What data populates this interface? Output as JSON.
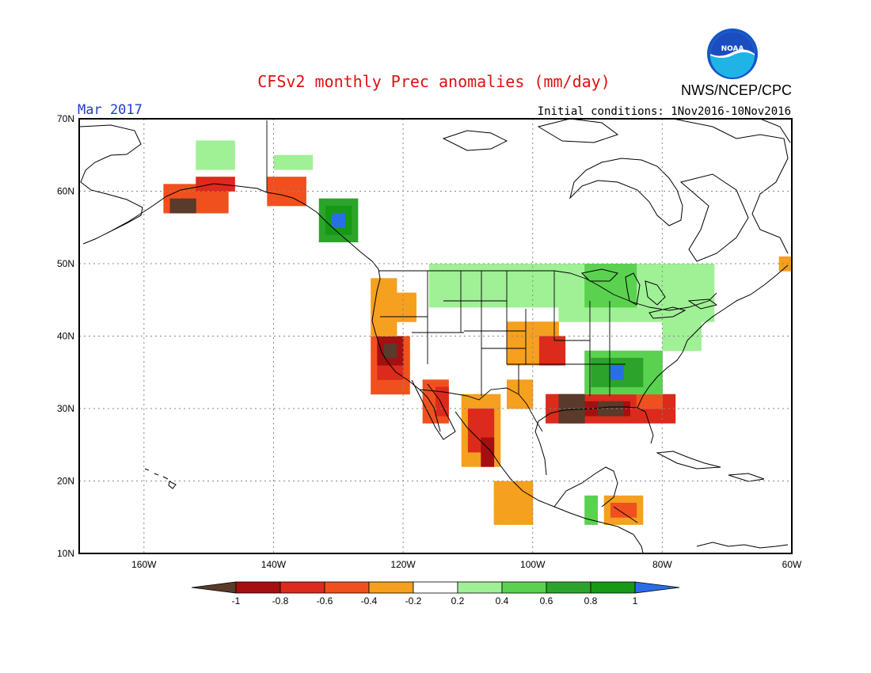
{
  "title": "CFSv2 monthly Prec anomalies (mm/day)",
  "month": "Mar 2017",
  "initial_conditions": "Initial conditions: 1Nov2016-10Nov2016",
  "agency": "NWS/NCEP/CPC",
  "logo_text": "NOAA",
  "map": {
    "lon_range": [
      -170,
      -60
    ],
    "lat_range": [
      10,
      70
    ],
    "lat_ticks": [
      "70N",
      "60N",
      "50N",
      "40N",
      "30N",
      "20N",
      "10N"
    ],
    "lon_ticks": [
      "160W",
      "140W",
      "120W",
      "100W",
      "80W",
      "60W"
    ],
    "grid": "dotted"
  },
  "legend": {
    "ticks": [
      "-1",
      "-0.8",
      "-0.6",
      "-0.4",
      "-0.2",
      "0.2",
      "0.4",
      "0.6",
      "0.8",
      "1"
    ],
    "colors": [
      "#5a3a2a",
      "#a50f0f",
      "#dc2a1c",
      "#f0501e",
      "#f5a01e",
      "#ffffff",
      "#a0f096",
      "#5ad250",
      "#2ca42c",
      "#169a16",
      "#2a6ee6"
    ]
  },
  "colors": {
    "title": "#e01010",
    "month": "#1e3ccc",
    "text": "#000000"
  },
  "anomaly_regions": [
    {
      "name": "alaska-sw",
      "level": -0.6,
      "lon": -154,
      "lat": 58.5
    },
    {
      "name": "alaska-brown",
      "level": -1,
      "lon": -155,
      "lat": 58
    },
    {
      "name": "gulf-alaska",
      "level": -0.6,
      "lon": -148,
      "lat": 61
    },
    {
      "name": "bc-coast-green",
      "level": 0.8,
      "lon": -131,
      "lat": 56
    },
    {
      "name": "bc-coast-blue",
      "level": 1,
      "lon": -130.5,
      "lat": 55.5
    },
    {
      "name": "california-dark",
      "level": -0.8,
      "lon": -121,
      "lat": 38
    },
    {
      "name": "pacific-nw-orange",
      "level": -0.4,
      "lon": -122,
      "lat": 45
    },
    {
      "name": "texas-brown",
      "level": -1,
      "lon": -94,
      "lat": 30
    },
    {
      "name": "gulf-red",
      "level": -0.8,
      "lon": -89,
      "lat": 30
    },
    {
      "name": "southeast-green",
      "level": 0.6,
      "lon": -88,
      "lat": 35
    },
    {
      "name": "great-lakes-green",
      "level": 0.4,
      "lon": -85,
      "lat": 48
    }
  ]
}
